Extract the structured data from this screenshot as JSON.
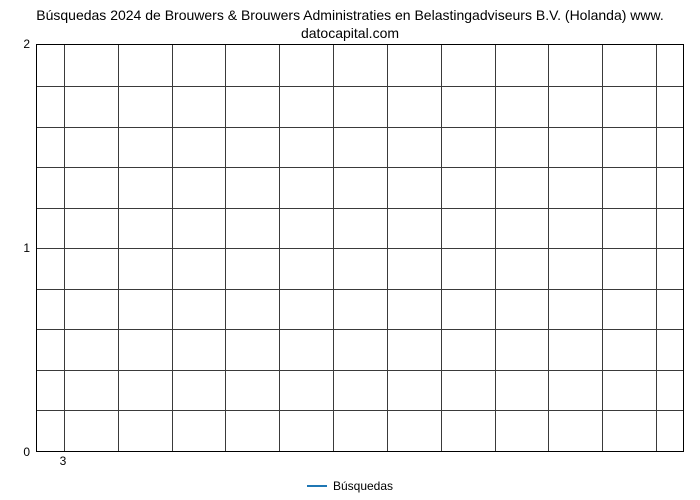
{
  "chart": {
    "type": "line",
    "title_line1": "Búsquedas 2024 de Brouwers & Brouwers Administraties en Belastingadviseurs B.V. (Holanda) www.",
    "title_line2": "datocapital.com",
    "title_fontsize": 14,
    "title_lineheight": 1.3,
    "title_color": "#000000",
    "background_color": "#ffffff",
    "plot_border_color": "#000000",
    "grid_color": "#3a3a3a",
    "grid_line_width": 1,
    "ylim": [
      0,
      2
    ],
    "yticks": [
      {
        "value": 0,
        "label": "0"
      },
      {
        "value": 1,
        "label": "1"
      },
      {
        "value": 2,
        "label": "2"
      }
    ],
    "y_minor_lines": [
      0.2,
      0.4,
      0.6,
      0.8,
      1.2,
      1.4,
      1.6,
      1.8
    ],
    "y_major_lines": [
      1
    ],
    "xlim": [
      3,
      3
    ],
    "xticks": [
      {
        "value": 3,
        "label": "3"
      }
    ],
    "x_vlines_count": 12,
    "tick_fontsize": 12,
    "tick_color": "#000000",
    "series": [
      {
        "name": "Búsquedas",
        "x": [
          3
        ],
        "y": [
          0
        ],
        "color": "#1f77b4",
        "line_width": 2
      }
    ],
    "legend": {
      "label": "Búsquedas",
      "swatch_color": "#1f77b4",
      "swatch_width": 20,
      "swatch_line_width": 2,
      "fontsize": 12
    }
  }
}
